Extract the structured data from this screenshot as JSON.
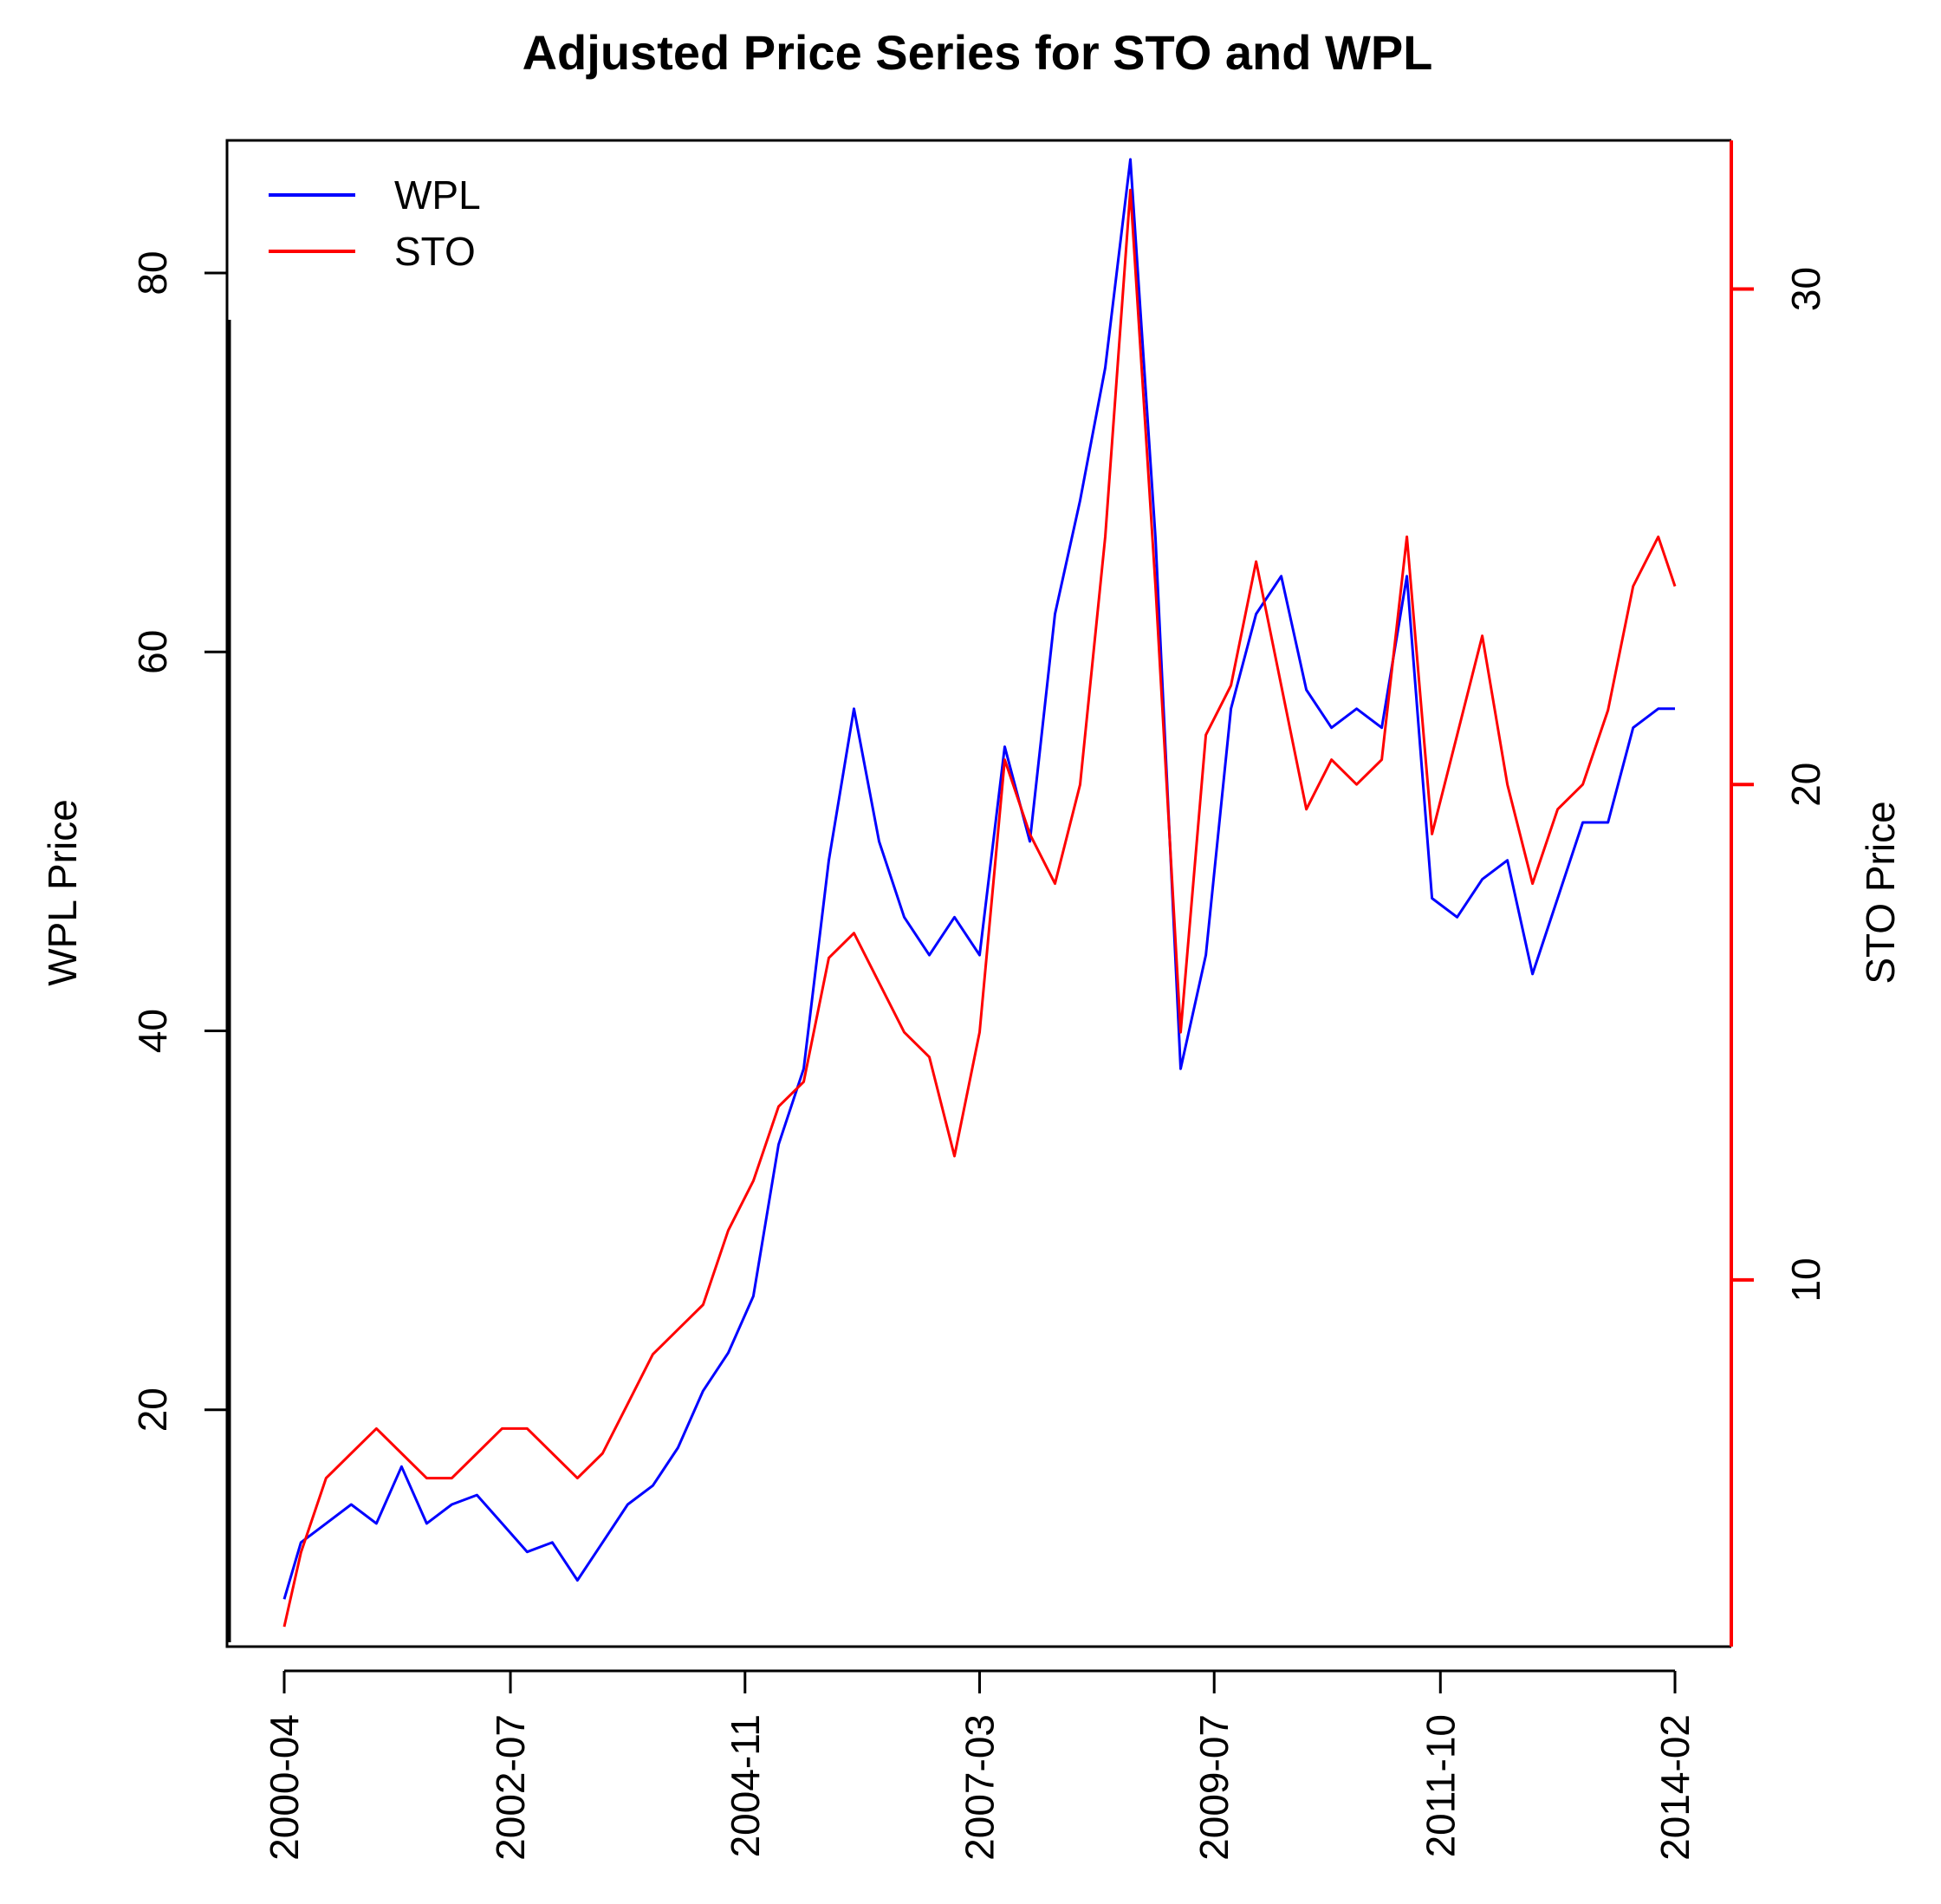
{
  "chart_data": {
    "type": "line",
    "title": "Adjusted Price Series for STO and WPL",
    "xlabel": "",
    "ylabel": "WPL Price",
    "y2label": "STO Price",
    "x_tick_labels": [
      "2000-04",
      "2002-07",
      "2004-11",
      "2007-03",
      "2009-07",
      "2011-10",
      "2014-02"
    ],
    "y_ticks": [
      20,
      40,
      60,
      80
    ],
    "y2_ticks": [
      10,
      20,
      30
    ],
    "xlim": [
      "2000-04",
      "2014-02"
    ],
    "ylim": [
      7.5,
      87
    ],
    "y2lim": [
      2.6,
      33
    ],
    "legend_position": "top-left",
    "grid": false,
    "series": [
      {
        "name": "WPL",
        "axis": "left",
        "color": "#0000ff",
        "x": [
          "2000-04",
          "2000-06",
          "2000-09",
          "2000-12",
          "2001-03",
          "2001-06",
          "2001-09",
          "2001-12",
          "2002-03",
          "2002-06",
          "2002-09",
          "2002-12",
          "2003-03",
          "2003-06",
          "2003-09",
          "2003-12",
          "2004-03",
          "2004-06",
          "2004-09",
          "2004-12",
          "2005-03",
          "2005-06",
          "2005-09",
          "2005-12",
          "2006-03",
          "2006-06",
          "2006-09",
          "2006-12",
          "2007-03",
          "2007-06",
          "2007-09",
          "2007-12",
          "2008-03",
          "2008-06",
          "2008-09",
          "2008-12",
          "2009-03",
          "2009-06",
          "2009-09",
          "2009-12",
          "2010-03",
          "2010-06",
          "2010-09",
          "2010-12",
          "2011-03",
          "2011-06",
          "2011-09",
          "2011-12",
          "2012-03",
          "2012-06",
          "2012-09",
          "2012-12",
          "2013-03",
          "2013-06",
          "2013-09",
          "2013-12",
          "2014-02"
        ],
        "values": [
          10.0,
          13.0,
          14.0,
          15.0,
          14.0,
          17.0,
          14.0,
          15.0,
          15.5,
          14.0,
          12.5,
          13.0,
          11.0,
          13.0,
          15.0,
          16.0,
          18.0,
          21.0,
          23.0,
          26.0,
          34.0,
          38.0,
          49.0,
          57.0,
          50.0,
          46.0,
          44.0,
          46.0,
          44.0,
          55.0,
          50.0,
          62.0,
          68.0,
          75.0,
          86.0,
          66.0,
          38.0,
          44.0,
          57.0,
          62.0,
          64.0,
          58.0,
          56.0,
          57.0,
          56.0,
          64.0,
          47.0,
          46.0,
          48.0,
          49.0,
          43.0,
          47.0,
          51.0,
          51.0,
          56.0,
          57.0,
          57.0
        ]
      },
      {
        "name": "STO",
        "axis": "right",
        "color": "#ff0000",
        "x": [
          "2000-04",
          "2000-06",
          "2000-09",
          "2000-12",
          "2001-03",
          "2001-06",
          "2001-09",
          "2001-12",
          "2002-03",
          "2002-06",
          "2002-09",
          "2002-12",
          "2003-03",
          "2003-06",
          "2003-09",
          "2003-12",
          "2004-03",
          "2004-06",
          "2004-09",
          "2004-12",
          "2005-03",
          "2005-06",
          "2005-09",
          "2005-12",
          "2006-03",
          "2006-06",
          "2006-09",
          "2006-12",
          "2007-03",
          "2007-06",
          "2007-09",
          "2007-12",
          "2008-03",
          "2008-06",
          "2008-09",
          "2008-12",
          "2009-03",
          "2009-06",
          "2009-09",
          "2009-12",
          "2010-03",
          "2010-06",
          "2010-09",
          "2010-12",
          "2011-03",
          "2011-06",
          "2011-09",
          "2011-12",
          "2012-03",
          "2012-06",
          "2012-09",
          "2012-12",
          "2013-03",
          "2013-06",
          "2013-09",
          "2013-12",
          "2014-02"
        ],
        "values": [
          3.0,
          4.5,
          6.0,
          6.5,
          7.0,
          6.5,
          6.0,
          6.0,
          6.5,
          7.0,
          7.0,
          6.5,
          6.0,
          6.5,
          7.5,
          8.5,
          9.0,
          9.5,
          11.0,
          12.0,
          13.5,
          14.0,
          16.5,
          17.0,
          16.0,
          15.0,
          14.5,
          12.5,
          15.0,
          20.5,
          19.0,
          18.0,
          20.0,
          25.0,
          32.0,
          24.0,
          15.0,
          21.0,
          22.0,
          24.5,
          22.0,
          19.5,
          20.5,
          20.0,
          20.5,
          25.0,
          19.0,
          21.0,
          23.0,
          20.0,
          18.0,
          19.5,
          20.0,
          21.5,
          24.0,
          25.0,
          24.0
        ]
      }
    ]
  }
}
